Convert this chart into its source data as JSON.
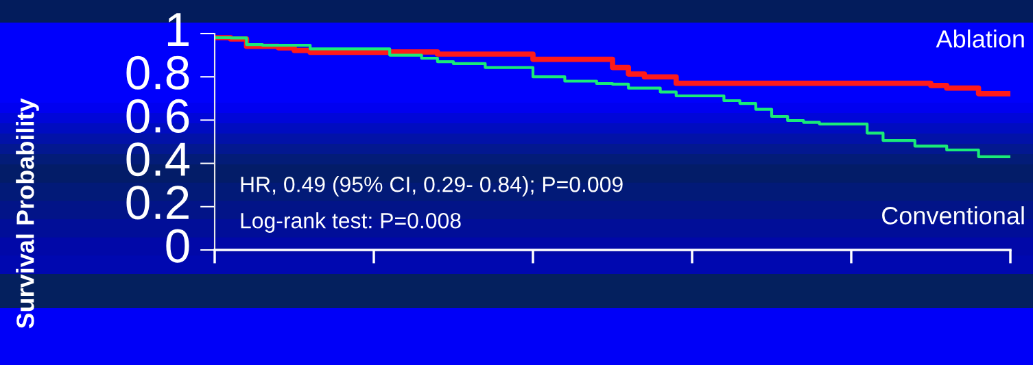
{
  "chart_data": {
    "type": "step",
    "ylabel": "Survival Probability",
    "categories": [
      null,
      null,
      null,
      null,
      null,
      null,
      null,
      null,
      null,
      null,
      null,
      null,
      null,
      null,
      null,
      null,
      null,
      null,
      null,
      null,
      null,
      null,
      null,
      null,
      null,
      null,
      null,
      null,
      null,
      null,
      null,
      null,
      null,
      null,
      null,
      null,
      null,
      null,
      null,
      null,
      null,
      null,
      null,
      null,
      null,
      null,
      null,
      null,
      null,
      null,
      null
    ],
    "series": [
      {
        "name": "Ablation",
        "color": "#ff1a1a",
        "values": [
          0.981,
          0.975,
          0.941,
          0.941,
          0.934,
          0.922,
          0.913,
          0.913,
          0.913,
          0.913,
          0.913,
          0.915,
          0.915,
          0.915,
          0.905,
          0.905,
          0.905,
          0.905,
          0.905,
          0.905,
          0.881,
          0.881,
          0.881,
          0.881,
          0.881,
          0.843,
          0.813,
          0.8,
          0.8,
          0.77,
          0.77,
          0.77,
          0.77,
          0.77,
          0.77,
          0.77,
          0.77,
          0.77,
          0.77,
          0.77,
          0.77,
          0.77,
          0.77,
          0.77,
          0.77,
          0.76,
          0.748,
          0.748,
          0.722,
          0.722,
          0.722
        ]
      },
      {
        "name": "Conventional",
        "color": "#1aeb78",
        "values": [
          0.981,
          0.98,
          0.949,
          0.946,
          0.946,
          0.946,
          0.929,
          0.929,
          0.929,
          0.929,
          0.929,
          0.9,
          0.9,
          0.886,
          0.87,
          0.861,
          0.861,
          0.843,
          0.843,
          0.843,
          0.8,
          0.8,
          0.78,
          0.78,
          0.769,
          0.766,
          0.748,
          0.748,
          0.73,
          0.712,
          0.712,
          0.712,
          0.69,
          0.677,
          0.65,
          0.617,
          0.598,
          0.59,
          0.582,
          0.582,
          0.582,
          0.54,
          0.506,
          0.506,
          0.48,
          0.48,
          0.462,
          0.462,
          0.431,
          0.431,
          0.431
        ]
      }
    ],
    "ylim": [
      0,
      1
    ],
    "yticks": [
      0,
      0.2,
      0.4,
      0.6,
      0.8,
      1
    ],
    "annotations": [
      "HR, 0.49 (95% CI, 0.29- 0.84); P=0.009",
      "Log-rank test: P=0.008"
    ],
    "grid": false,
    "legend": false,
    "marker": "none",
    "line_style": "solid"
  }
}
